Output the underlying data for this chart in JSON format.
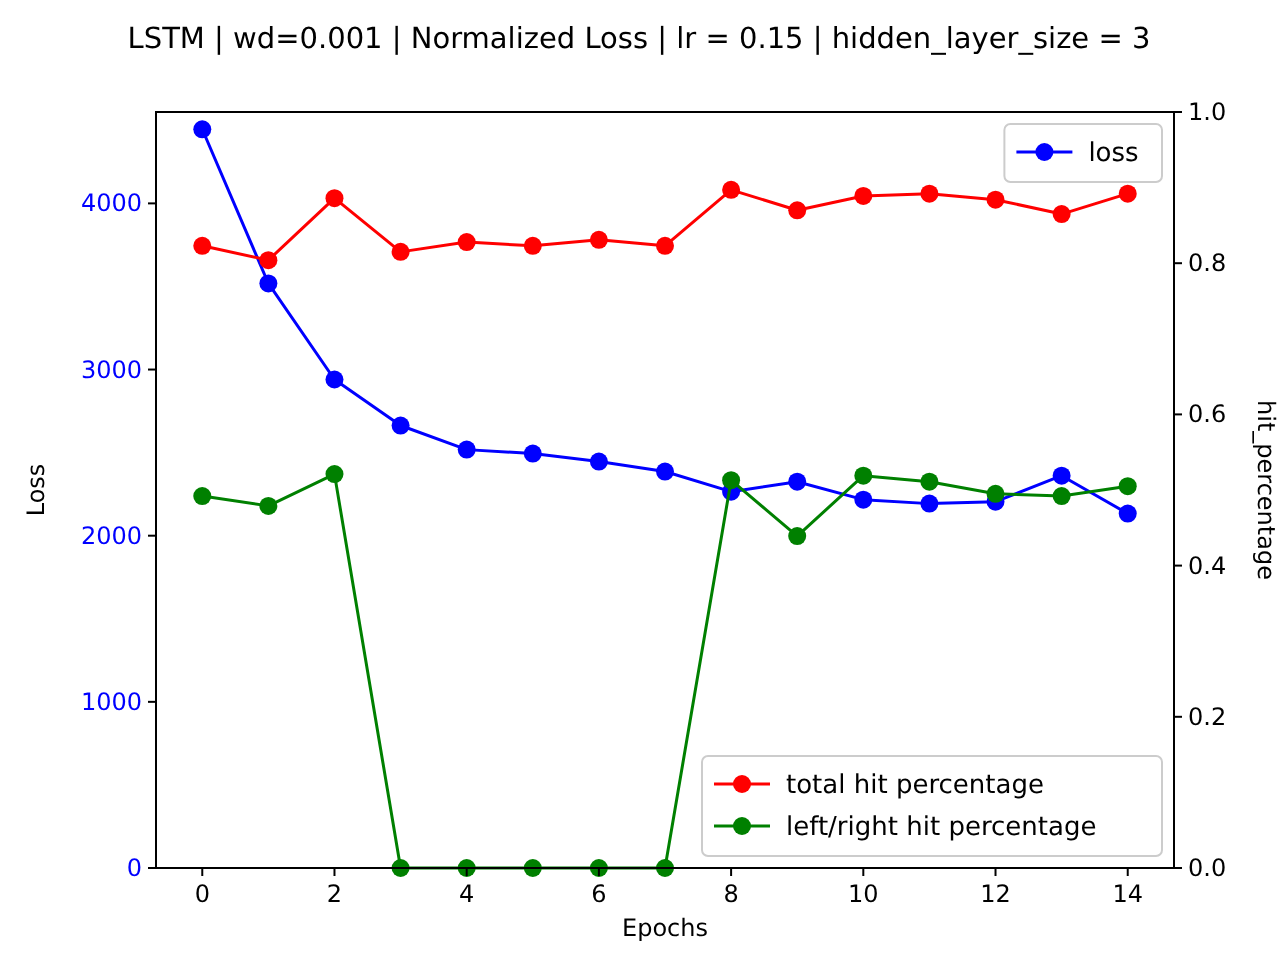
{
  "chart_data": {
    "type": "line",
    "title": "LSTM | wd=0.001 | Normalized Loss | lr = 0.15 | hidden_layer_size = 3",
    "xlabel": "Epochs",
    "ylabel": "Loss",
    "y2label": "hit_percentage",
    "x": [
      0,
      1,
      2,
      3,
      4,
      5,
      6,
      7,
      8,
      9,
      10,
      11,
      12,
      13,
      14
    ],
    "series": [
      {
        "name": "loss",
        "color": "#0000ff",
        "values": [
          4446,
          3518,
          2940,
          2663,
          2518,
          2494,
          2446,
          2386,
          2265,
          2325,
          2217,
          2193,
          2205,
          2361,
          2133
        ]
      },
      {
        "name": "total hit percentage",
        "color": "#ff0000",
        "axis": "y2",
        "values": [
          0.823,
          0.804,
          0.886,
          0.815,
          0.828,
          0.823,
          0.831,
          0.823,
          0.897,
          0.87,
          0.889,
          0.892,
          0.884,
          0.865,
          0.892
        ]
      },
      {
        "name": "left/right hit percentage",
        "color": "#008000",
        "axis": "y2",
        "values": [
          0.492,
          0.479,
          0.521,
          0,
          0,
          0,
          0,
          0,
          0.513,
          0.439,
          0.519,
          0.511,
          0.495,
          0.492,
          0.505
        ]
      }
    ],
    "xlim": [
      -0.7,
      14.7
    ],
    "xticks": [
      0,
      2,
      4,
      6,
      8,
      10,
      12,
      14
    ],
    "ylim": [
      0,
      4550
    ],
    "yticks": [
      0,
      1000,
      2000,
      3000,
      4000
    ],
    "y2lim": [
      0,
      1
    ],
    "y2ticks": [
      {
        "value": 0,
        "label": "0.0"
      },
      {
        "value": 0.2,
        "label": "0.2"
      },
      {
        "value": 0.4,
        "label": "0.4"
      },
      {
        "value": 0.6,
        "label": "0.6"
      },
      {
        "value": 0.8,
        "label": "0.8"
      },
      {
        "value": 1,
        "label": "1.0"
      }
    ],
    "marker": "circle",
    "line_style": "solid",
    "legend": "right",
    "grid": false
  }
}
